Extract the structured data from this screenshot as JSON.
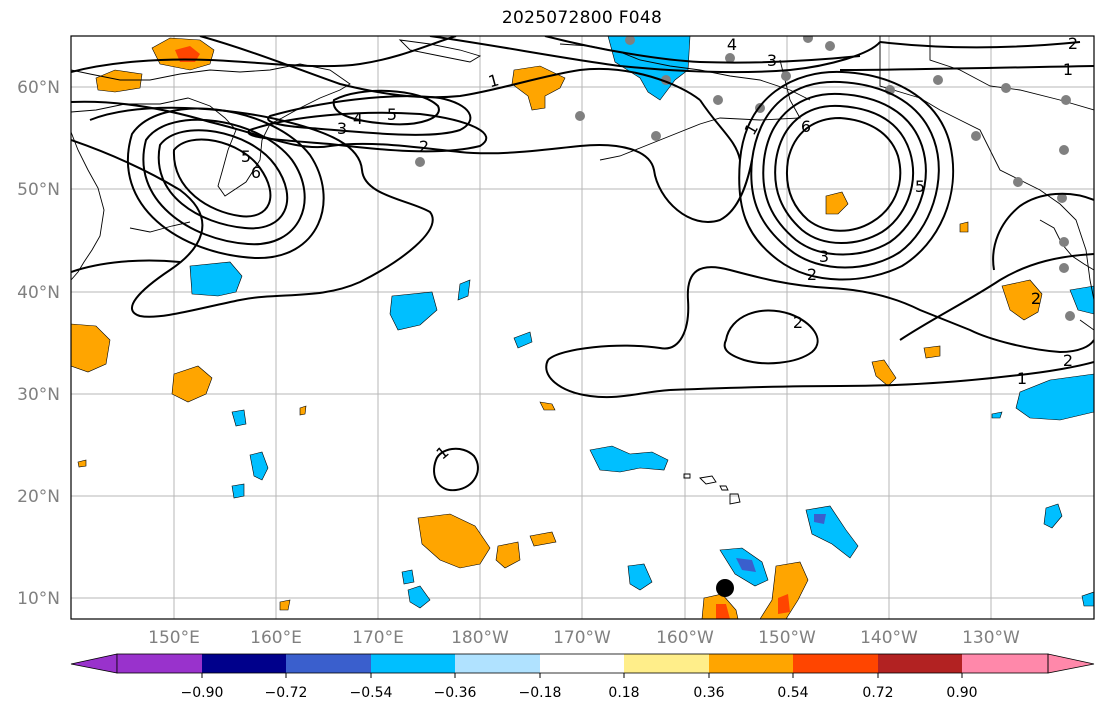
{
  "title": "2025072800 F048",
  "axes": {
    "lat_labels": [
      "60°N",
      "50°N",
      "40°N",
      "30°N",
      "20°N",
      "10°N"
    ],
    "lon_labels": [
      "150°E",
      "160°E",
      "170°E",
      "180°W",
      "170°W",
      "160°W",
      "150°W",
      "140°W",
      "130°W"
    ]
  },
  "contour_labels": [
    {
      "id": "lbl-1-nw",
      "text": "1"
    },
    {
      "id": "lbl-4-nw",
      "text": "4"
    },
    {
      "id": "lbl-5-nw",
      "text": "5"
    },
    {
      "id": "lbl-3-nw",
      "text": "3"
    },
    {
      "id": "lbl-2-nw",
      "text": "2"
    },
    {
      "id": "lbl-5-w",
      "text": "5"
    },
    {
      "id": "lbl-6-w",
      "text": "6"
    },
    {
      "id": "lbl-4-n",
      "text": "4"
    },
    {
      "id": "lbl-3-n",
      "text": "3"
    },
    {
      "id": "lbl-2-ne",
      "text": "2"
    },
    {
      "id": "lbl-1-ne",
      "text": "1"
    },
    {
      "id": "lbl-1-gulf",
      "text": "1"
    },
    {
      "id": "lbl-6-gulf",
      "text": "6"
    },
    {
      "id": "lbl-5-gulf",
      "text": "5"
    },
    {
      "id": "lbl-3-gulf",
      "text": "3"
    },
    {
      "id": "lbl-2-gulf",
      "text": "2"
    },
    {
      "id": "lbl-2-mid",
      "text": "2"
    },
    {
      "id": "lbl-2-e",
      "text": "2"
    },
    {
      "id": "lbl-1-e",
      "text": "1"
    },
    {
      "id": "lbl-2-coast",
      "text": "2"
    },
    {
      "id": "lbl-1-sw",
      "text": "1"
    }
  ],
  "colorbar": {
    "tick_labels": [
      "−0.90",
      "−0.72",
      "−0.54",
      "−0.36",
      "−0.18",
      "0.18",
      "0.36",
      "0.54",
      "0.72",
      "0.90"
    ],
    "colors": [
      "#9932cc",
      "#00008b",
      "#3a5fcd",
      "#00bfff",
      "#b0e2ff",
      "#ffffff",
      "#ffee8a",
      "#ffa500",
      "#ff4500",
      "#b22222",
      "#ff88aa"
    ]
  }
}
